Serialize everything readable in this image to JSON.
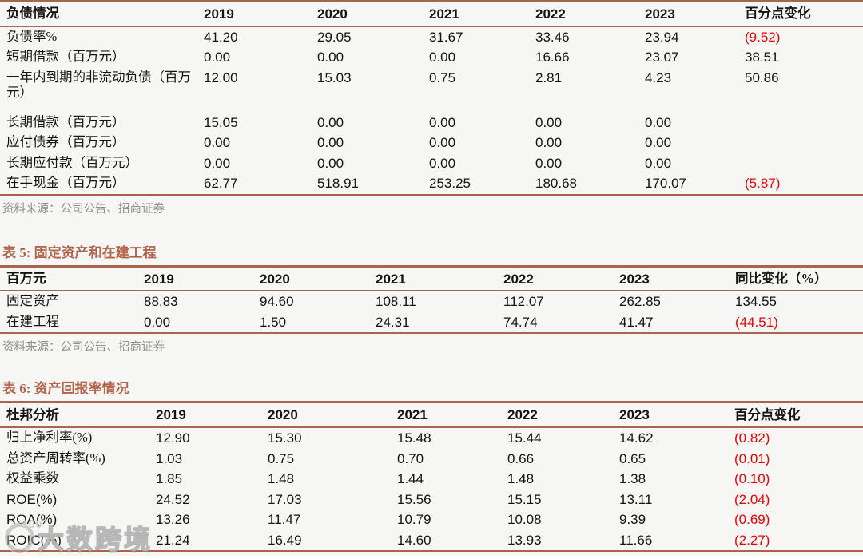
{
  "colors": {
    "background": "#F6F6F4",
    "table_line": "#A9644C",
    "title_text": "#B2664C",
    "negative_value": "#F20000",
    "source_text": "#8F8F8D"
  },
  "tables": [
    {
      "title": "",
      "header": [
        "负债情况",
        "2019",
        "2020",
        "2021",
        "2022",
        "2023",
        "百分点变化"
      ],
      "rows": [
        [
          "负债率%",
          "41.20",
          "29.05",
          "31.67",
          "33.46",
          "23.94",
          "(9.52)"
        ],
        [
          "短期借款（百万元）",
          "0.00",
          "0.00",
          "0.00",
          "16.66",
          "23.07",
          "38.51"
        ],
        [
          "一年内到期的非流动负债（百万元）",
          "12.00",
          "15.03",
          "0.75",
          "2.81",
          "4.23",
          "50.86"
        ],
        [
          "长期借款（百万元）",
          "15.05",
          "0.00",
          "0.00",
          "0.00",
          "0.00",
          ""
        ],
        [
          "应付债券（百万元）",
          "0.00",
          "0.00",
          "0.00",
          "0.00",
          "0.00",
          ""
        ],
        [
          "长期应付款（百万元）",
          "0.00",
          "0.00",
          "0.00",
          "0.00",
          "0.00",
          ""
        ],
        [
          "在手现金（百万元）",
          "62.77",
          "518.91",
          "253.25",
          "180.68",
          "170.07",
          "(5.87)"
        ]
      ],
      "source": "资料来源：公司公告、招商证券"
    },
    {
      "title": "表 5:  固定资产和在建工程",
      "header": [
        "百万元",
        "2019",
        "2020",
        "2021",
        "2022",
        "2023",
        "同比变化（%）"
      ],
      "rows": [
        [
          "固定资产",
          "88.83",
          "94.60",
          "108.11",
          "112.07",
          "262.85",
          "134.55"
        ],
        [
          "在建工程",
          "0.00",
          "1.50",
          "24.31",
          "74.74",
          "41.47",
          "(44.51)"
        ]
      ],
      "source": "资料来源：公司公告、招商证券"
    },
    {
      "title": "表 6:  资产回报率情况",
      "header": [
        "杜邦分析",
        "2019",
        "2020",
        "2021",
        "2022",
        "2023",
        "百分点变化"
      ],
      "rows": [
        [
          "归上净利率(%)",
          "12.90",
          "15.30",
          "15.48",
          "15.44",
          "14.62",
          "(0.82)"
        ],
        [
          "总资产周转率(%)",
          "1.03",
          "0.75",
          "0.70",
          "0.66",
          "0.65",
          "(0.01)"
        ],
        [
          "权益乘数",
          "1.85",
          "1.48",
          "1.44",
          "1.48",
          "1.38",
          "(0.10)"
        ],
        [
          "ROE(%)",
          "24.52",
          "17.03",
          "15.56",
          "15.15",
          "13.11",
          "(2.04)"
        ],
        [
          "ROA(%)",
          "13.26",
          "11.47",
          "10.79",
          "10.08",
          "9.39",
          "(0.69)"
        ],
        [
          "ROIC(%)",
          "21.24",
          "16.49",
          "14.60",
          "13.93",
          "11.66",
          "(2.27)"
        ]
      ],
      "source": "资料来源：公司公告、招商证券"
    }
  ],
  "watermark": {
    "badge": "100",
    "text": "大数跨境"
  }
}
